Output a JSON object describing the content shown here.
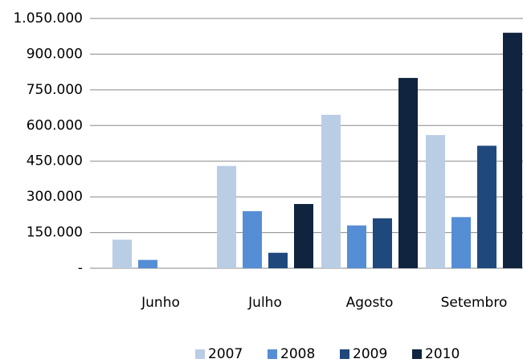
{
  "chart_data": {
    "type": "bar",
    "categories": [
      "Junho",
      "Julho",
      "Agosto",
      "Setembro"
    ],
    "series": [
      {
        "name": "2007",
        "color": "#b9cde5",
        "values": [
          120000,
          430000,
          645000,
          560000
        ]
      },
      {
        "name": "2008",
        "color": "#558ed5",
        "values": [
          35000,
          240000,
          180000,
          215000
        ]
      },
      {
        "name": "2009",
        "color": "#1f497d",
        "values": [
          0,
          65000,
          210000,
          515000
        ]
      },
      {
        "name": "2010",
        "color": "#10243f",
        "values": [
          0,
          270000,
          800000,
          990000
        ]
      }
    ],
    "ylim": [
      0,
      1050000
    ],
    "yticks": [
      {
        "value": 0,
        "label": "-"
      },
      {
        "value": 150000,
        "label": "150.000"
      },
      {
        "value": 300000,
        "label": "300.000"
      },
      {
        "value": 450000,
        "label": "450.000"
      },
      {
        "value": 600000,
        "label": "600.000"
      },
      {
        "value": 750000,
        "label": "750.000"
      },
      {
        "value": 900000,
        "label": "900.000"
      },
      {
        "value": 1050000,
        "label": "1.050.000"
      }
    ],
    "grid": true
  }
}
